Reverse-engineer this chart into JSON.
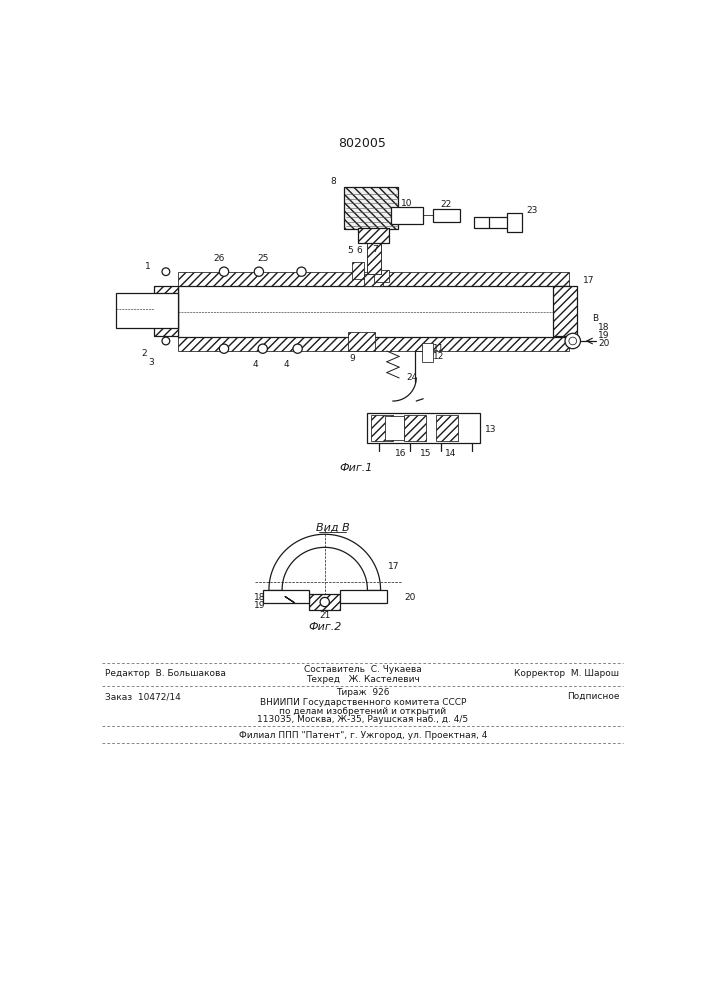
{
  "patent_number": "802005",
  "fig1_caption": "Фиг.1",
  "fig2_caption": "Фиг.2",
  "view_b_label": "Вид В",
  "footer": {
    "editor": "Редактор  В. Большакова",
    "composer": "Составитель  С. Чукаева",
    "techred": "Техред   Ж. Кастелевич",
    "corrector": "Корректор  М. Шарош",
    "order": "Заказ  10472/14",
    "tirazh": "Тираж  926",
    "podpisnoe": "Подписное",
    "org_line1": "ВНИИПИ Государственного комитета СССР",
    "org_line2": "по делам изобретений и открытий",
    "org_line3": "113035, Москва, Ж-35, Раушская наб., д. 4/5",
    "filial": "Филиал ППП \"Патент\", г. Ужгород, ул. Проектная, 4"
  },
  "bg_color": "#ffffff",
  "line_color": "#1a1a1a"
}
